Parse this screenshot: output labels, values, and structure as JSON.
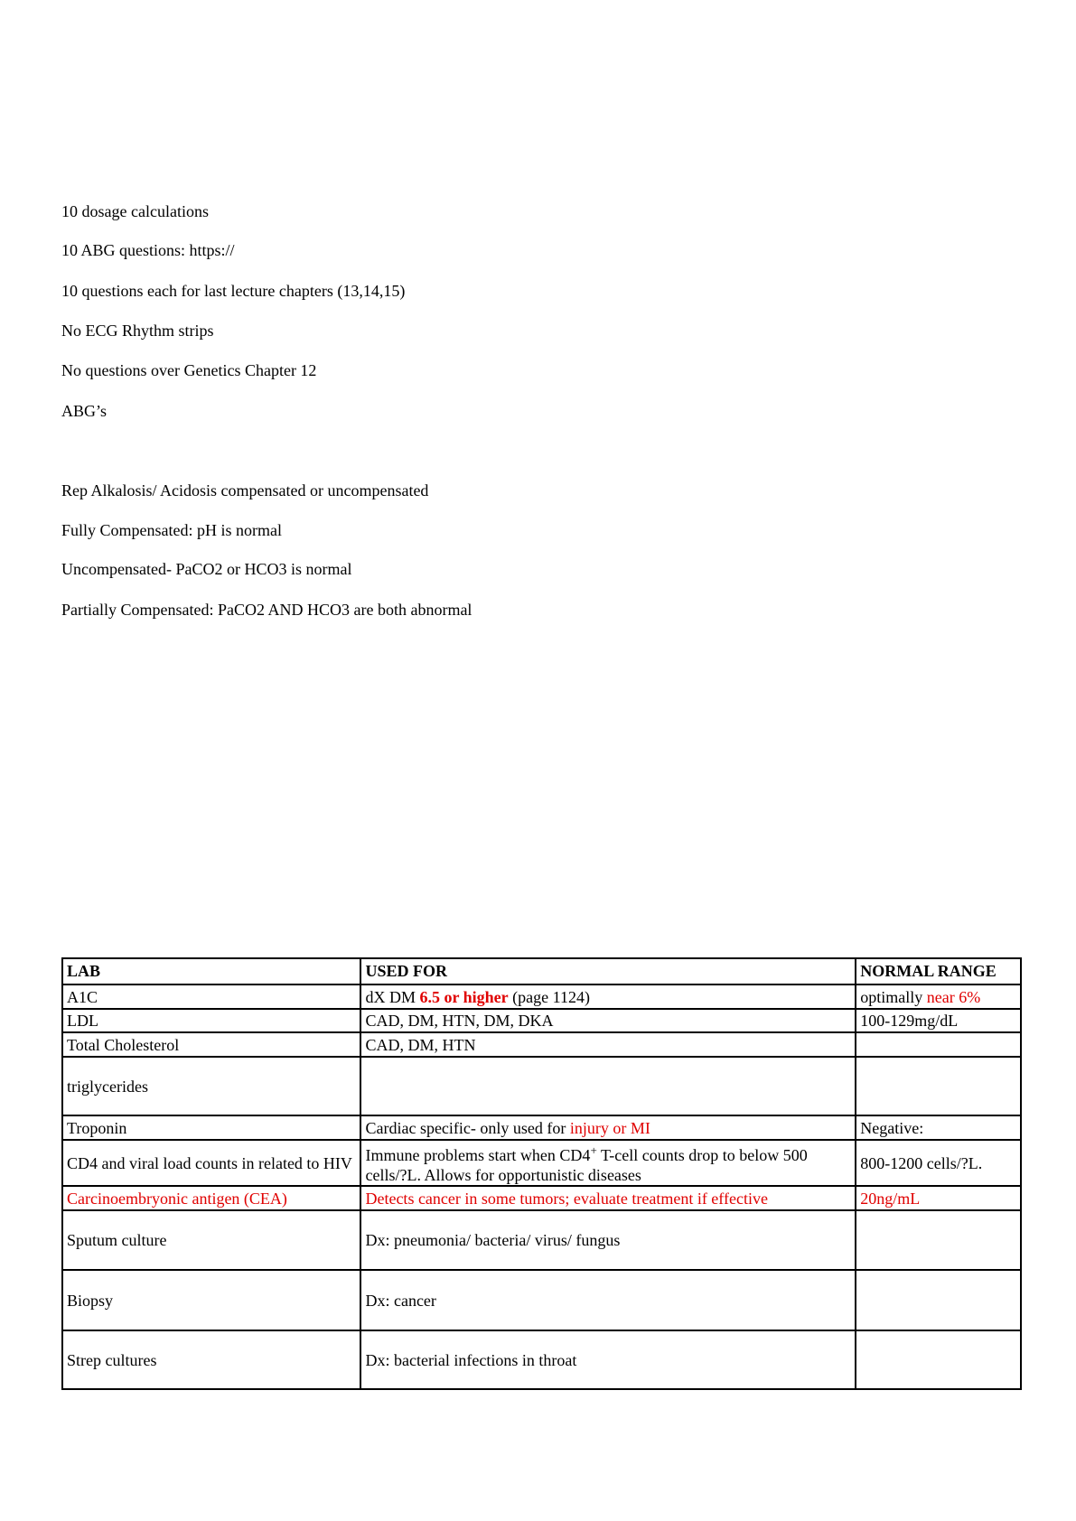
{
  "notes": [
    "10 dosage calculations",
    "10 ABG questions: https://",
    "10 questions each for last lecture chapters (13,14,15)",
    "No ECG Rhythm strips",
    "No questions over Genetics Chapter 12",
    "ABG’s",
    "Rep Alkalosis/ Acidosis compensated or uncompensated",
    "Fully Compensated: pH is normal",
    "Uncompensated- PaCO2 or HCO3 is normal",
    "Partially Compensated: PaCO2 AND HCO3 are both abnormal"
  ],
  "table": {
    "header": [
      "LAB",
      "USED FOR",
      "NORMAL RANGE"
    ],
    "rows": [
      [
        [
          "A1C"
        ],
        [
          "dX DM ",
          "6.5 or higher",
          " (page 1124)"
        ],
        [
          "optimally ",
          "near 6%"
        ]
      ],
      [
        [
          "LDL"
        ],
        [
          "CAD, DM, HTN, DM, DKA"
        ],
        [
          "100-129mg/dL"
        ]
      ],
      [
        [
          "Total Cholesterol"
        ],
        [
          "CAD, DM, HTN"
        ],
        []
      ],
      [
        [
          "triglycerides"
        ],
        [],
        []
      ],
      [
        [
          "Troponin"
        ],
        [
          "Cardiac specific- only used for ",
          "injury or MI"
        ],
        [
          "Negative:"
        ]
      ],
      [
        [
          "CD4 and viral load counts in related to HIV"
        ],
        [
          "Immune problems start when CD4",
          "+",
          " T-cell counts drop to below 500 cells/?L. Allows for opportunistic diseases"
        ],
        [
          "800-1200 cells/?L."
        ]
      ],
      [
        [
          "Carcinoembryonic antigen (CEA)"
        ],
        [
          "Detects cancer in some tumors; evaluate treatment if effective"
        ],
        [
          "20ng/mL"
        ]
      ],
      [
        [
          "Sputum culture"
        ],
        [
          "Dx: pneumonia/ bacteria/ virus/ fungus"
        ],
        []
      ],
      [
        [
          "Biopsy"
        ],
        [
          "Dx: cancer"
        ],
        []
      ],
      [
        [
          "Strep cultures"
        ],
        [
          "Dx: bacterial infections in throat"
        ],
        []
      ]
    ]
  }
}
